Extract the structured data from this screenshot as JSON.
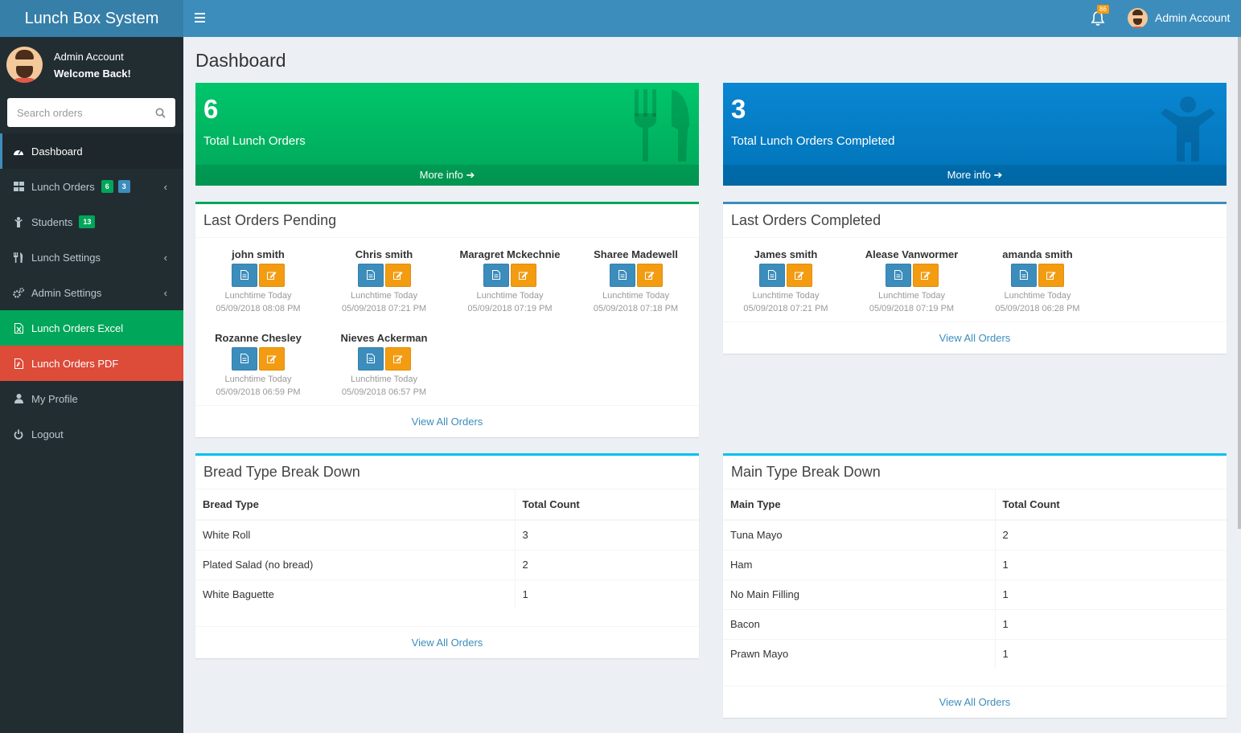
{
  "app": {
    "title": "Lunch Box System"
  },
  "user": {
    "name": "Admin Account",
    "welcome": "Welcome Back!"
  },
  "header": {
    "notifications": "86",
    "user_name": "Admin Account"
  },
  "search": {
    "placeholder": "Search orders"
  },
  "menu": [
    {
      "label": "Dashboard",
      "icon": "dashboard-icon"
    },
    {
      "label": "Lunch Orders",
      "icon": "grid-icon",
      "badges": [
        "6",
        "3"
      ]
    },
    {
      "label": "Students",
      "icon": "child-icon",
      "badges": [
        "13"
      ]
    },
    {
      "label": "Lunch Settings",
      "icon": "cutlery-icon"
    },
    {
      "label": "Admin Settings",
      "icon": "cogs-icon"
    },
    {
      "label": "Lunch Orders Excel",
      "icon": "excel-icon"
    },
    {
      "label": "Lunch Orders PDF",
      "icon": "pdf-icon"
    },
    {
      "label": "My Profile",
      "icon": "user-icon"
    },
    {
      "label": "Logout",
      "icon": "power-icon"
    }
  ],
  "page": {
    "title": "Dashboard"
  },
  "stats": [
    {
      "value": "6",
      "label": "Total Lunch Orders",
      "more": "More info",
      "color": "#00a65a"
    },
    {
      "value": "3",
      "label": "Total Lunch Orders Completed",
      "more": "More info",
      "color": "#0073b7"
    }
  ],
  "pending": {
    "title": "Last Orders Pending",
    "footer": "View All Orders",
    "orders": [
      {
        "name": "john smith",
        "when": "Lunchtime Today",
        "date": "05/09/2018 08:08 PM"
      },
      {
        "name": "Chris smith",
        "when": "Lunchtime Today",
        "date": "05/09/2018 07:21 PM"
      },
      {
        "name": "Maragret Mckechnie",
        "when": "Lunchtime Today",
        "date": "05/09/2018 07:19 PM"
      },
      {
        "name": "Sharee Madewell",
        "when": "Lunchtime Today",
        "date": "05/09/2018 07:18 PM"
      },
      {
        "name": "Rozanne Chesley",
        "when": "Lunchtime Today",
        "date": "05/09/2018 06:59 PM"
      },
      {
        "name": "Nieves Ackerman",
        "when": "Lunchtime Today",
        "date": "05/09/2018 06:57 PM"
      }
    ]
  },
  "completed": {
    "title": "Last Orders Completed",
    "footer": "View All Orders",
    "orders": [
      {
        "name": "James smith",
        "when": "Lunchtime Today",
        "date": "05/09/2018 07:21 PM"
      },
      {
        "name": "Alease Vanwormer",
        "when": "Lunchtime Today",
        "date": "05/09/2018 07:19 PM"
      },
      {
        "name": "amanda smith",
        "when": "Lunchtime Today",
        "date": "05/09/2018 06:28 PM"
      }
    ]
  },
  "bread": {
    "title": "Bread Type Break Down",
    "headers": [
      "Bread Type",
      "Total Count"
    ],
    "rows": [
      [
        "White Roll",
        "3"
      ],
      [
        "Plated Salad (no bread)",
        "2"
      ],
      [
        "White Baguette",
        "1"
      ]
    ],
    "footer": "View All Orders"
  },
  "mains": {
    "title": "Main Type Break Down",
    "headers": [
      "Main Type",
      "Total Count"
    ],
    "rows": [
      [
        "Tuna Mayo",
        "2"
      ],
      [
        "Ham",
        "1"
      ],
      [
        "No Main Filling",
        "1"
      ],
      [
        "Bacon",
        "1"
      ],
      [
        "Prawn Mayo",
        "1"
      ]
    ],
    "footer": "View All Orders"
  }
}
